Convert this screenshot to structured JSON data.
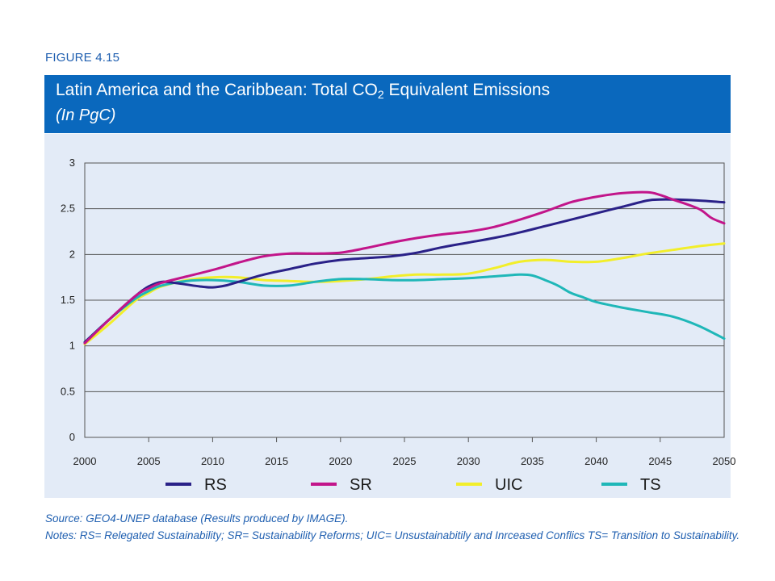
{
  "figure_label": "FIGURE 4.15",
  "banner": {
    "title_pre": "Latin America and the Caribbean: Total CO",
    "title_sub": "2",
    "title_post": " Equivalent Emissions",
    "subtitle": "(In PgC)"
  },
  "colors": {
    "banner": "#0a68bd",
    "panel": "#e3ebf7",
    "RS": "#2a2188",
    "SR": "#c2158a",
    "UIC": "#f2ee2a",
    "TS": "#1fb7b8"
  },
  "chart_data": {
    "type": "line",
    "title": "Latin America and the Caribbean: Total CO2 Equivalent Emissions",
    "subtitle": "(In PgC)",
    "xlabel": "",
    "ylabel": "",
    "xlim": [
      2000,
      2050
    ],
    "ylim": [
      0,
      3
    ],
    "grid": "horizontal",
    "legend_position": "bottom",
    "x_ticks": [
      "2000",
      "2005",
      "2010",
      "2015",
      "2020",
      "2025",
      "2030",
      "2035",
      "2040",
      "2045",
      "2050"
    ],
    "y_ticks": [
      "0",
      "0.5",
      "1",
      "1.5",
      "2",
      "2.5",
      "3"
    ],
    "series": [
      {
        "name": "RS",
        "x": [
          2000,
          2002,
          2004,
          2005,
          2006,
          2007,
          2008,
          2009,
          2010,
          2011,
          2012,
          2014,
          2016,
          2018,
          2020,
          2022,
          2024,
          2026,
          2028,
          2030,
          2032,
          2034,
          2036,
          2038,
          2040,
          2042,
          2044,
          2045,
          2046,
          2048,
          2050
        ],
        "y": [
          1.04,
          1.3,
          1.55,
          1.65,
          1.7,
          1.69,
          1.67,
          1.65,
          1.64,
          1.66,
          1.7,
          1.78,
          1.84,
          1.9,
          1.94,
          1.96,
          1.98,
          2.02,
          2.08,
          2.13,
          2.18,
          2.24,
          2.31,
          2.38,
          2.45,
          2.52,
          2.59,
          2.6,
          2.6,
          2.59,
          2.57
        ]
      },
      {
        "name": "SR",
        "x": [
          2000,
          2002,
          2004,
          2005,
          2006,
          2008,
          2010,
          2012,
          2014,
          2016,
          2018,
          2020,
          2022,
          2024,
          2026,
          2028,
          2030,
          2032,
          2034,
          2036,
          2038,
          2040,
          2042,
          2044,
          2045,
          2046,
          2048,
          2049,
          2050
        ],
        "y": [
          1.03,
          1.3,
          1.55,
          1.63,
          1.69,
          1.76,
          1.83,
          1.91,
          1.98,
          2.01,
          2.01,
          2.02,
          2.07,
          2.13,
          2.18,
          2.22,
          2.25,
          2.3,
          2.38,
          2.47,
          2.57,
          2.63,
          2.67,
          2.68,
          2.65,
          2.6,
          2.5,
          2.4,
          2.34
        ]
      },
      {
        "name": "UIC",
        "x": [
          2000,
          2002,
          2004,
          2005,
          2006,
          2008,
          2010,
          2012,
          2014,
          2016,
          2018,
          2020,
          2022,
          2024,
          2026,
          2028,
          2030,
          2032,
          2034,
          2036,
          2038,
          2040,
          2042,
          2044,
          2046,
          2048,
          2050
        ],
        "y": [
          1.02,
          1.25,
          1.5,
          1.58,
          1.65,
          1.72,
          1.75,
          1.75,
          1.72,
          1.71,
          1.7,
          1.71,
          1.73,
          1.76,
          1.78,
          1.78,
          1.79,
          1.85,
          1.92,
          1.94,
          1.92,
          1.92,
          1.96,
          2.01,
          2.05,
          2.09,
          2.12
        ]
      },
      {
        "name": "TS",
        "x": [
          2000,
          2002,
          2004,
          2005,
          2006,
          2008,
          2010,
          2012,
          2014,
          2016,
          2018,
          2020,
          2022,
          2024,
          2026,
          2028,
          2030,
          2032,
          2034,
          2035,
          2036,
          2037,
          2038,
          2039,
          2040,
          2042,
          2044,
          2046,
          2048,
          2050
        ],
        "y": [
          1.04,
          1.3,
          1.52,
          1.6,
          1.66,
          1.71,
          1.72,
          1.7,
          1.66,
          1.66,
          1.7,
          1.73,
          1.73,
          1.72,
          1.72,
          1.73,
          1.74,
          1.76,
          1.78,
          1.77,
          1.72,
          1.66,
          1.58,
          1.53,
          1.48,
          1.42,
          1.37,
          1.32,
          1.22,
          1.08
        ]
      }
    ]
  },
  "notes": {
    "source": "Source: GEO4-UNEP database (Results produced by IMAGE).",
    "notes": "Notes: RS= Relegated Sustainability; SR= Sustainability Reforms; UIC= Unsustainabitily and Inrceased Conflics TS= Transition to Sustainability."
  }
}
